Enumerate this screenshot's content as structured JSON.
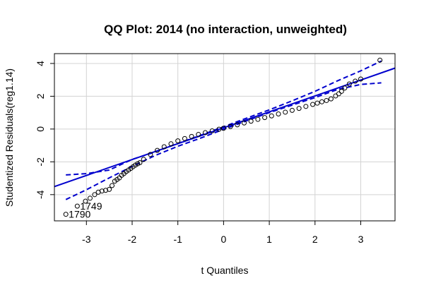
{
  "chart_data": {
    "type": "scatter",
    "title": "QQ Plot: 2014 (no interaction, unweighted)",
    "xlabel": "t Quantiles",
    "ylabel": "Studentized Residuals(reg1.14)",
    "xlim": [
      -3.7,
      3.75
    ],
    "ylim": [
      -5.6,
      4.6
    ],
    "x_ticks": [
      -3,
      -2,
      -1,
      0,
      1,
      2,
      3
    ],
    "y_ticks": [
      -4,
      -2,
      0,
      2,
      4
    ],
    "grid": true,
    "colors": {
      "points": "#000000",
      "reference_line": "#0000cd",
      "envelope": "#0000cd",
      "grid": "#d3d3d3"
    },
    "series": [
      {
        "role": "observations",
        "style": "open-circle",
        "points": [
          [
            -3.45,
            -5.2
          ],
          [
            -3.2,
            -4.7
          ],
          [
            -3.02,
            -4.4
          ],
          [
            -2.92,
            -4.22
          ],
          [
            -2.82,
            -4.0
          ],
          [
            -2.74,
            -3.85
          ],
          [
            -2.66,
            -3.78
          ],
          [
            -2.58,
            -3.74
          ],
          [
            -2.5,
            -3.68
          ],
          [
            -2.44,
            -3.45
          ],
          [
            -2.38,
            -3.18
          ],
          [
            -2.33,
            -3.08
          ],
          [
            -2.28,
            -2.98
          ],
          [
            -2.23,
            -2.82
          ],
          [
            -2.18,
            -2.72
          ],
          [
            -2.13,
            -2.6
          ],
          [
            -2.08,
            -2.5
          ],
          [
            -2.03,
            -2.4
          ],
          [
            -1.98,
            -2.3
          ],
          [
            -1.93,
            -2.2
          ],
          [
            -1.88,
            -2.12
          ],
          [
            -1.83,
            -2.05
          ],
          [
            -1.75,
            -1.85
          ],
          [
            -1.6,
            -1.55
          ],
          [
            -1.45,
            -1.3
          ],
          [
            -1.3,
            -1.08
          ],
          [
            -1.15,
            -0.9
          ],
          [
            -1.0,
            -0.72
          ],
          [
            -0.85,
            -0.58
          ],
          [
            -0.7,
            -0.45
          ],
          [
            -0.55,
            -0.33
          ],
          [
            -0.4,
            -0.22
          ],
          [
            -0.25,
            -0.11
          ],
          [
            -0.1,
            -0.01
          ],
          [
            0.0,
            0.05
          ],
          [
            0.15,
            0.15
          ],
          [
            0.3,
            0.26
          ],
          [
            0.45,
            0.37
          ],
          [
            0.6,
            0.48
          ],
          [
            0.75,
            0.59
          ],
          [
            0.9,
            0.7
          ],
          [
            1.05,
            0.8
          ],
          [
            1.2,
            0.92
          ],
          [
            1.35,
            1.03
          ],
          [
            1.5,
            1.14
          ],
          [
            1.65,
            1.26
          ],
          [
            1.8,
            1.38
          ],
          [
            1.95,
            1.5
          ],
          [
            2.05,
            1.58
          ],
          [
            2.15,
            1.66
          ],
          [
            2.25,
            1.74
          ],
          [
            2.35,
            1.84
          ],
          [
            2.45,
            2.02
          ],
          [
            2.52,
            2.15
          ],
          [
            2.58,
            2.3
          ],
          [
            2.65,
            2.5
          ],
          [
            2.75,
            2.75
          ],
          [
            2.88,
            2.92
          ],
          [
            3.0,
            3.05
          ],
          [
            3.42,
            4.2
          ]
        ]
      }
    ],
    "reference_line": {
      "intercept": 0.08,
      "slope": 0.97
    },
    "envelope": {
      "upper": [
        [
          -3.45,
          -2.8
        ],
        [
          -3.0,
          -2.72
        ],
        [
          -2.5,
          -2.5
        ],
        [
          -2.0,
          -1.85
        ],
        [
          -1.5,
          -1.4
        ],
        [
          -1.0,
          -0.88
        ],
        [
          -0.5,
          -0.38
        ],
        [
          0.0,
          0.14
        ],
        [
          0.5,
          0.66
        ],
        [
          1.0,
          1.17
        ],
        [
          1.5,
          1.72
        ],
        [
          2.0,
          2.3
        ],
        [
          2.5,
          2.95
        ],
        [
          3.0,
          3.55
        ],
        [
          3.45,
          4.15
        ]
      ],
      "lower": [
        [
          -3.45,
          -4.3
        ],
        [
          -3.0,
          -3.7
        ],
        [
          -2.5,
          -2.98
        ],
        [
          -2.0,
          -2.28
        ],
        [
          -1.5,
          -1.62
        ],
        [
          -1.0,
          -1.05
        ],
        [
          -0.5,
          -0.55
        ],
        [
          0.0,
          -0.02
        ],
        [
          0.5,
          0.5
        ],
        [
          1.0,
          1.0
        ],
        [
          1.5,
          1.46
        ],
        [
          2.0,
          1.92
        ],
        [
          2.5,
          2.42
        ],
        [
          3.0,
          2.72
        ],
        [
          3.45,
          2.82
        ]
      ]
    },
    "annotations": [
      {
        "text": "1749",
        "x": -3.2,
        "y": -4.7
      },
      {
        "text": "1790",
        "x": -3.45,
        "y": -5.2
      }
    ]
  }
}
